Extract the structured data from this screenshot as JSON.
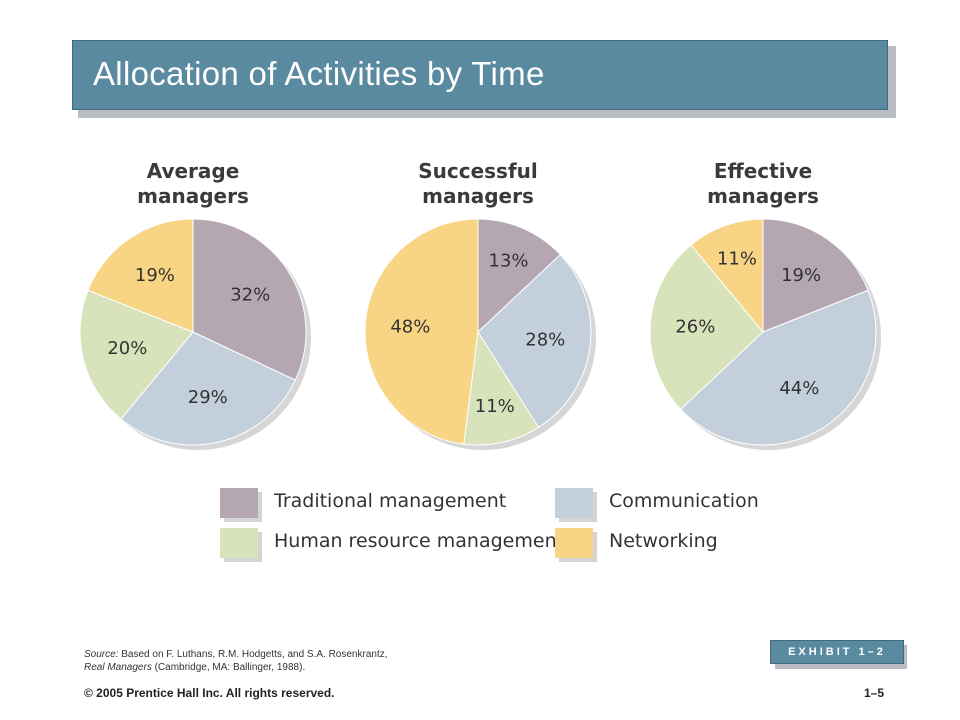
{
  "slide": {
    "title": "Allocation of Activities by Time",
    "source_label": "Source:",
    "source_text": " Based on F. Luthans, R.M. Hodgetts, and S.A. Rosenkrantz,",
    "source_book": "Real Managers",
    "source_pub": " (Cambridge, MA: Ballinger, 1988).",
    "exhibit": "EXHIBIT 1–2",
    "copyright": "© 2005 Prentice Hall Inc. All rights reserved.",
    "page_number": "1–5"
  },
  "colors": {
    "Traditional management": "#b4a7b2",
    "Communication": "#c3cfda",
    "Human resource management": "#d8e2bb",
    "Networking": "#f8d585"
  },
  "chart_data": [
    {
      "type": "pie",
      "title": [
        "Average",
        "managers"
      ],
      "slices": [
        {
          "label": "Traditional management",
          "value": 32
        },
        {
          "label": "Communication",
          "value": 29
        },
        {
          "label": "Human resource management",
          "value": 20
        },
        {
          "label": "Networking",
          "value": 19
        }
      ]
    },
    {
      "type": "pie",
      "title": [
        "Successful",
        "managers"
      ],
      "slices": [
        {
          "label": "Traditional management",
          "value": 13
        },
        {
          "label": "Communication",
          "value": 28
        },
        {
          "label": "Human resource management",
          "value": 11
        },
        {
          "label": "Networking",
          "value": 48
        }
      ]
    },
    {
      "type": "pie",
      "title": [
        "Effective",
        "managers"
      ],
      "slices": [
        {
          "label": "Traditional management",
          "value": 19
        },
        {
          "label": "Communication",
          "value": 44
        },
        {
          "label": "Human resource management",
          "value": 26
        },
        {
          "label": "Networking",
          "value": 11
        }
      ]
    }
  ],
  "legend": [
    "Traditional management",
    "Communication",
    "Human resource management",
    "Networking"
  ]
}
